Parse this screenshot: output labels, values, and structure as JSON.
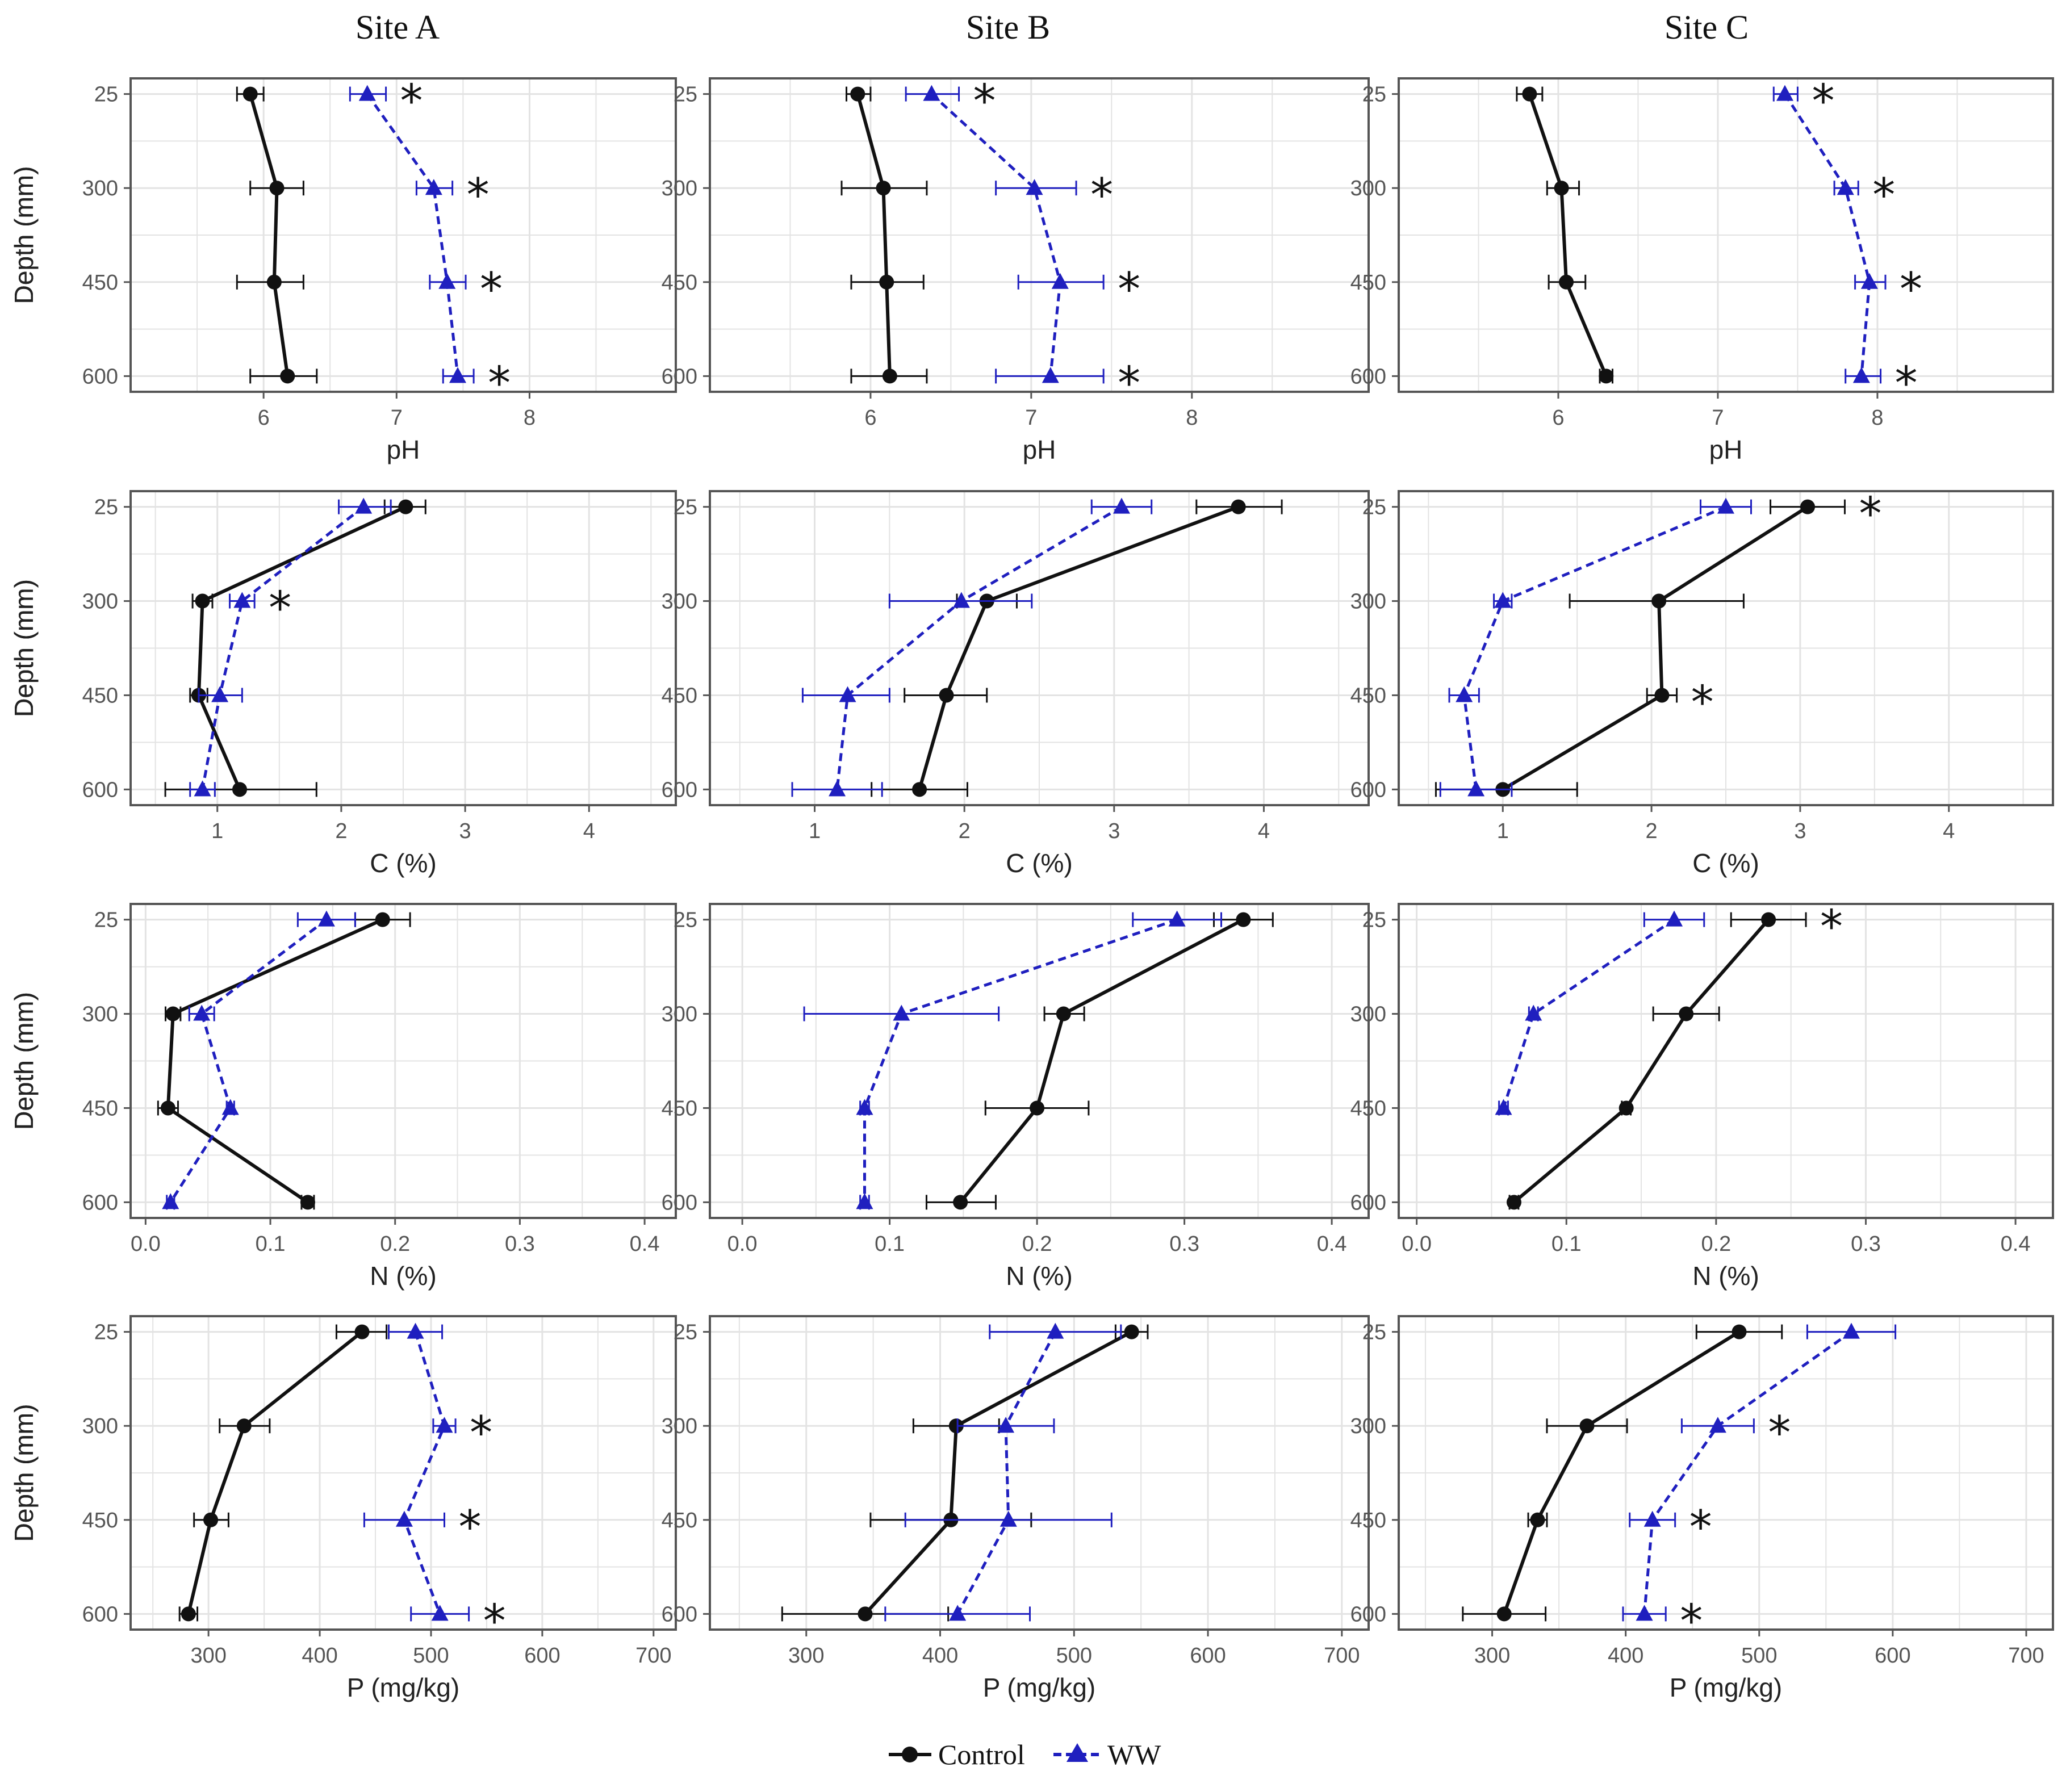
{
  "legend": {
    "control_label": "Control",
    "ww_label": "WW"
  },
  "colors": {
    "control": "#111111",
    "ww": "#1f1fbf",
    "frame": "#555555",
    "grid": "#e3e3e3"
  },
  "depth_axis": {
    "label": "Depth (mm)",
    "ticks": [
      "25",
      "300",
      "450",
      "600"
    ]
  },
  "sites": [
    "Site A",
    "Site B",
    "Site C"
  ],
  "chart_data": [
    {
      "type": "line",
      "site": "Site A",
      "variable": "pH",
      "xlabel": "pH",
      "ylabel": "Depth (mm)",
      "xlim": [
        5.0,
        9.1
      ],
      "xticks": [
        6,
        7,
        8
      ],
      "depth": [
        "25",
        "300",
        "450",
        "600"
      ],
      "series": [
        {
          "name": "Control",
          "values": [
            5.9,
            6.1,
            6.08,
            6.18
          ],
          "err_low": [
            5.8,
            5.9,
            5.8,
            5.9
          ],
          "err_high": [
            6.0,
            6.3,
            6.3,
            6.4
          ]
        },
        {
          "name": "WW",
          "values": [
            6.78,
            7.28,
            7.38,
            7.46
          ],
          "err_low": [
            6.65,
            7.15,
            7.25,
            7.35
          ],
          "err_high": [
            6.92,
            7.42,
            7.52,
            7.58
          ]
        }
      ],
      "significant": [
        true,
        true,
        true,
        true
      ]
    },
    {
      "type": "line",
      "site": "Site B",
      "variable": "pH",
      "xlabel": "pH",
      "ylabel": "Depth (mm)",
      "xlim": [
        5.0,
        9.1
      ],
      "xticks": [
        6,
        7,
        8
      ],
      "depth": [
        "25",
        "300",
        "450",
        "600"
      ],
      "series": [
        {
          "name": "Control",
          "values": [
            5.92,
            6.08,
            6.1,
            6.12
          ],
          "err_low": [
            5.85,
            5.82,
            5.88,
            5.88
          ],
          "err_high": [
            6.0,
            6.35,
            6.33,
            6.35
          ]
        },
        {
          "name": "WW",
          "values": [
            6.38,
            7.02,
            7.18,
            7.12
          ],
          "err_low": [
            6.22,
            6.78,
            6.92,
            6.78
          ],
          "err_high": [
            6.55,
            7.28,
            7.45,
            7.45
          ]
        }
      ],
      "significant": [
        true,
        true,
        true,
        true
      ]
    },
    {
      "type": "line",
      "site": "Site C",
      "variable": "pH",
      "xlabel": "pH",
      "ylabel": "Depth (mm)",
      "xlim": [
        5.0,
        9.1
      ],
      "xticks": [
        6,
        7,
        8
      ],
      "depth": [
        "25",
        "300",
        "450",
        "600"
      ],
      "series": [
        {
          "name": "Control",
          "values": [
            5.82,
            6.02,
            6.05,
            6.3
          ],
          "err_low": [
            5.74,
            5.93,
            5.94,
            6.26
          ],
          "err_high": [
            5.9,
            6.13,
            6.17,
            6.34
          ]
        },
        {
          "name": "WW",
          "values": [
            7.42,
            7.8,
            7.95,
            7.9
          ],
          "err_low": [
            7.35,
            7.73,
            7.86,
            7.8
          ],
          "err_high": [
            7.5,
            7.88,
            8.05,
            8.02
          ]
        }
      ],
      "significant": [
        true,
        true,
        true,
        true
      ]
    },
    {
      "type": "line",
      "site": "Site A",
      "variable": "C",
      "xlabel": "C (%)",
      "ylabel": "Depth (mm)",
      "xlim": [
        0.3,
        4.7
      ],
      "xticks": [
        1,
        2,
        3,
        4
      ],
      "depth": [
        "25",
        "300",
        "450",
        "600"
      ],
      "series": [
        {
          "name": "Control",
          "values": [
            2.52,
            0.88,
            0.85,
            1.18
          ],
          "err_low": [
            2.35,
            0.8,
            0.78,
            0.58
          ],
          "err_high": [
            2.68,
            0.96,
            0.92,
            1.8
          ]
        },
        {
          "name": "WW",
          "values": [
            2.18,
            1.2,
            1.02,
            0.88
          ],
          "err_low": [
            1.98,
            1.1,
            0.85,
            0.78
          ],
          "err_high": [
            2.4,
            1.3,
            1.2,
            0.98
          ]
        }
      ],
      "significant": [
        false,
        true,
        false,
        false
      ]
    },
    {
      "type": "line",
      "site": "Site B",
      "variable": "C",
      "xlabel": "C (%)",
      "ylabel": "Depth (mm)",
      "xlim": [
        0.3,
        4.7
      ],
      "xticks": [
        1,
        2,
        3,
        4
      ],
      "depth": [
        "25",
        "300",
        "450",
        "600"
      ],
      "series": [
        {
          "name": "Control",
          "values": [
            3.83,
            2.15,
            1.88,
            1.7
          ],
          "err_low": [
            3.55,
            1.95,
            1.6,
            1.38
          ],
          "err_high": [
            4.12,
            2.35,
            2.15,
            2.02
          ]
        },
        {
          "name": "WW",
          "values": [
            3.05,
            1.98,
            1.22,
            1.15
          ],
          "err_low": [
            2.85,
            1.5,
            0.92,
            0.85
          ],
          "err_high": [
            3.25,
            2.45,
            1.5,
            1.45
          ]
        }
      ],
      "significant": [
        false,
        false,
        false,
        false
      ]
    },
    {
      "type": "line",
      "site": "Site C",
      "variable": "C",
      "xlabel": "C (%)",
      "ylabel": "Depth (mm)",
      "xlim": [
        0.3,
        4.7
      ],
      "xticks": [
        1,
        2,
        3,
        4
      ],
      "depth": [
        "25",
        "300",
        "450",
        "600"
      ],
      "series": [
        {
          "name": "Control",
          "values": [
            3.05,
            2.05,
            2.07,
            1.0
          ],
          "err_low": [
            2.8,
            1.45,
            1.97,
            0.55
          ],
          "err_high": [
            3.3,
            2.62,
            2.17,
            1.5
          ]
        },
        {
          "name": "WW",
          "values": [
            2.5,
            1.0,
            0.74,
            0.82
          ],
          "err_low": [
            2.33,
            0.94,
            0.64,
            0.58
          ],
          "err_high": [
            2.67,
            1.06,
            0.84,
            1.06
          ]
        }
      ],
      "significant": [
        true,
        false,
        true,
        false
      ]
    },
    {
      "type": "line",
      "site": "Site A",
      "variable": "N",
      "xlabel": "N (%)",
      "ylabel": "Depth (mm)",
      "xlim": [
        -0.012,
        0.425
      ],
      "xticks": [
        "0.0",
        "0.1",
        "0.2",
        "0.3",
        "0.4"
      ],
      "depth": [
        "25",
        "300",
        "450",
        "600"
      ],
      "series": [
        {
          "name": "Control",
          "values": [
            0.19,
            0.022,
            0.018,
            0.13
          ],
          "err_low": [
            0.168,
            0.016,
            0.01,
            0.125
          ],
          "err_high": [
            0.212,
            0.028,
            0.026,
            0.135
          ]
        },
        {
          "name": "WW",
          "values": [
            0.145,
            0.045,
            0.068,
            0.02
          ],
          "err_low": [
            0.122,
            0.035,
            0.065,
            0.017
          ],
          "err_high": [
            0.168,
            0.055,
            0.071,
            0.023
          ]
        }
      ],
      "significant": [
        false,
        false,
        false,
        false
      ]
    },
    {
      "type": "line",
      "site": "Site B",
      "variable": "N",
      "xlabel": "N (%)",
      "ylabel": "Depth (mm)",
      "xlim": [
        -0.022,
        0.425
      ],
      "xticks": [
        "0.0",
        "0.1",
        "0.2",
        "0.3",
        "0.4"
      ],
      "depth": [
        "25",
        "300",
        "450",
        "600"
      ],
      "series": [
        {
          "name": "Control",
          "values": [
            0.34,
            0.218,
            0.2,
            0.148
          ],
          "err_low": [
            0.32,
            0.205,
            0.165,
            0.125
          ],
          "err_high": [
            0.36,
            0.232,
            0.235,
            0.172
          ]
        },
        {
          "name": "WW",
          "values": [
            0.295,
            0.108,
            0.083,
            0.083
          ],
          "err_low": [
            0.265,
            0.042,
            0.08,
            0.08
          ],
          "err_high": [
            0.325,
            0.174,
            0.086,
            0.086
          ]
        }
      ],
      "significant": [
        false,
        false,
        false,
        false
      ]
    },
    {
      "type": "line",
      "site": "Site C",
      "variable": "N",
      "xlabel": "N (%)",
      "ylabel": "Depth (mm)",
      "xlim": [
        -0.012,
        0.425
      ],
      "xticks": [
        "0.0",
        "0.1",
        "0.2",
        "0.3",
        "0.4"
      ],
      "depth": [
        "25",
        "300",
        "450",
        "600"
      ],
      "series": [
        {
          "name": "Control",
          "values": [
            0.235,
            0.18,
            0.14,
            0.065
          ],
          "err_low": [
            0.21,
            0.158,
            0.137,
            0.062
          ],
          "err_high": [
            0.26,
            0.202,
            0.143,
            0.068
          ]
        },
        {
          "name": "WW",
          "values": [
            0.172,
            0.078,
            0.058,
            null
          ],
          "err_low": [
            0.152,
            0.075,
            0.055,
            null
          ],
          "err_high": [
            0.192,
            0.081,
            0.061,
            null
          ]
        }
      ],
      "significant": [
        true,
        false,
        false,
        false
      ]
    },
    {
      "type": "line",
      "site": "Site A",
      "variable": "P",
      "xlabel": "P (mg/kg)",
      "ylabel": "Depth (mm)",
      "xlim": [
        230,
        720
      ],
      "xticks": [
        300,
        400,
        500,
        600,
        700
      ],
      "depth": [
        "25",
        "300",
        "450",
        "600"
      ],
      "series": [
        {
          "name": "Control",
          "values": [
            438,
            332,
            302,
            282
          ],
          "err_low": [
            415,
            310,
            287,
            274
          ],
          "err_high": [
            460,
            355,
            318,
            290
          ]
        },
        {
          "name": "WW",
          "values": [
            486,
            512,
            476,
            508
          ],
          "err_low": [
            462,
            502,
            440,
            482
          ],
          "err_high": [
            510,
            522,
            512,
            534
          ]
        }
      ],
      "significant": [
        false,
        true,
        true,
        true
      ]
    },
    {
      "type": "line",
      "site": "Site B",
      "variable": "P",
      "xlabel": "P (mg/kg)",
      "ylabel": "Depth (mm)",
      "xlim": [
        228,
        720
      ],
      "xticks": [
        300,
        400,
        500,
        600,
        700
      ],
      "depth": [
        "25",
        "300",
        "450",
        "600"
      ],
      "series": [
        {
          "name": "Control",
          "values": [
            543,
            412,
            408,
            344
          ],
          "err_low": [
            531,
            380,
            348,
            282
          ],
          "err_high": [
            555,
            444,
            468,
            406
          ]
        },
        {
          "name": "WW",
          "values": [
            486,
            449,
            451,
            413
          ],
          "err_low": [
            437,
            413,
            374,
            359
          ],
          "err_high": [
            535,
            485,
            528,
            467
          ]
        }
      ],
      "significant": [
        false,
        false,
        false,
        false
      ]
    },
    {
      "type": "line",
      "site": "Site C",
      "variable": "P",
      "xlabel": "P (mg/kg)",
      "ylabel": "Depth (mm)",
      "xlim": [
        230,
        720
      ],
      "xticks": [
        300,
        400,
        500,
        600,
        700
      ],
      "depth": [
        "25",
        "300",
        "450",
        "600"
      ],
      "series": [
        {
          "name": "Control",
          "values": [
            485,
            371,
            334,
            309
          ],
          "err_low": [
            453,
            341,
            327,
            278
          ],
          "err_high": [
            517,
            401,
            341,
            340
          ]
        },
        {
          "name": "WW",
          "values": [
            569,
            469,
            420,
            414
          ],
          "err_low": [
            536,
            442,
            403,
            398
          ],
          "err_high": [
            602,
            496,
            437,
            430
          ]
        }
      ],
      "significant": [
        false,
        true,
        true,
        true
      ]
    }
  ]
}
